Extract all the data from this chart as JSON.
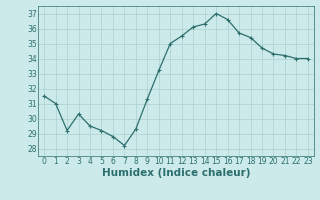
{
  "x": [
    0,
    1,
    2,
    3,
    4,
    5,
    6,
    7,
    8,
    9,
    10,
    11,
    12,
    13,
    14,
    15,
    16,
    17,
    18,
    19,
    20,
    21,
    22,
    23
  ],
  "y": [
    31.5,
    31.0,
    29.2,
    30.3,
    29.5,
    29.2,
    28.8,
    28.2,
    29.3,
    31.3,
    33.2,
    35.0,
    35.5,
    36.1,
    36.3,
    37.0,
    36.6,
    35.7,
    35.4,
    34.7,
    34.3,
    34.2,
    34.0,
    34.0
  ],
  "line_color": "#2d6e6e",
  "marker": "+",
  "marker_size": 3,
  "bg_color": "#cceaea",
  "grid_color": "#aacfcf",
  "xlabel": "Humidex (Indice chaleur)",
  "xlabel_color": "#2d6e6e",
  "xlim": [
    -0.5,
    23.5
  ],
  "ylim": [
    27.5,
    37.5
  ],
  "yticks": [
    28,
    29,
    30,
    31,
    32,
    33,
    34,
    35,
    36,
    37
  ],
  "xticks": [
    0,
    1,
    2,
    3,
    4,
    5,
    6,
    7,
    8,
    9,
    10,
    11,
    12,
    13,
    14,
    15,
    16,
    17,
    18,
    19,
    20,
    21,
    22,
    23
  ],
  "tick_color": "#2d6e6e",
  "tick_fontsize": 5.5,
  "xlabel_fontsize": 7.5,
  "line_width": 0.9,
  "spine_color": "#2d6e6e"
}
